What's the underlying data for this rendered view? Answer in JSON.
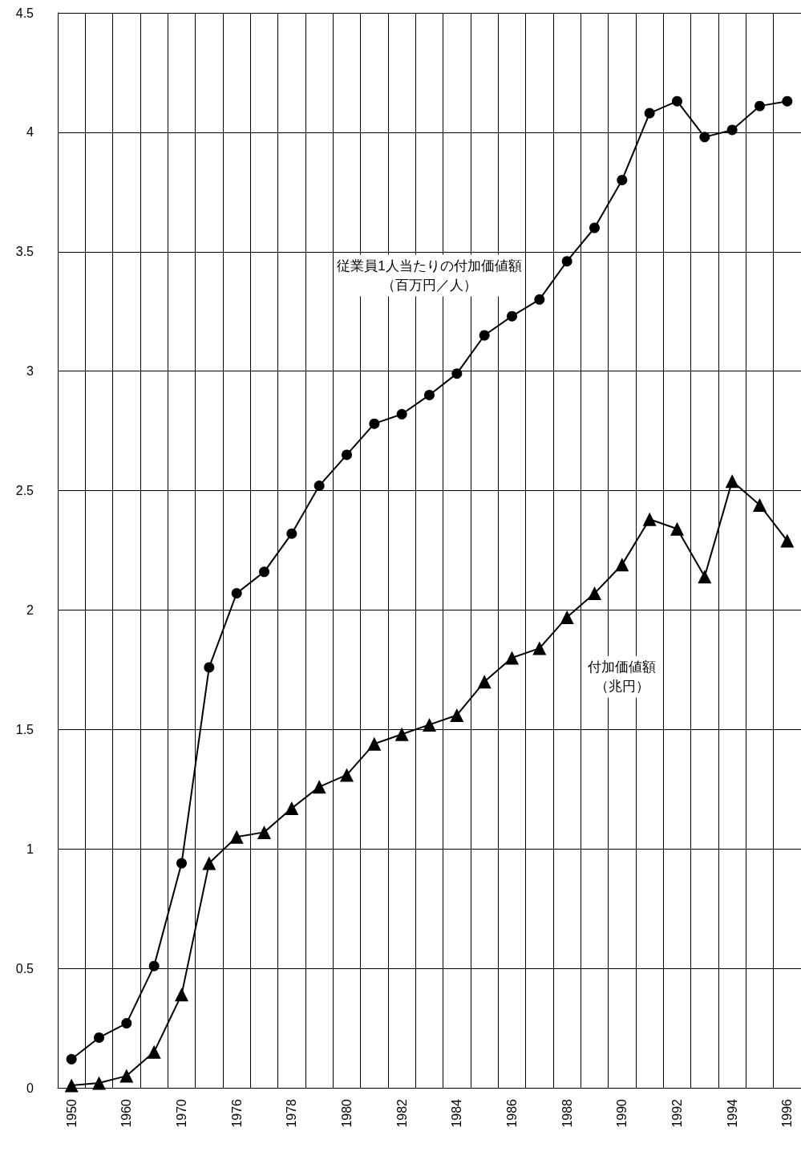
{
  "chart_data": {
    "type": "line",
    "categories": [
      "1950",
      null,
      "1960",
      null,
      "1970",
      null,
      "1976",
      null,
      "1978",
      null,
      "1980",
      null,
      "1982",
      null,
      "1984",
      null,
      "1986",
      null,
      "1988",
      null,
      "1990",
      null,
      "1992",
      null,
      "1994",
      null,
      "1996"
    ],
    "series": [
      {
        "name": "従業員1人当たりの付加価値額（百万円／人）",
        "color": "#000000",
        "marker": "circle",
        "values": [
          0.12,
          0.21,
          0.27,
          0.51,
          0.94,
          1.76,
          2.07,
          2.16,
          2.32,
          2.52,
          2.65,
          2.78,
          2.82,
          2.9,
          2.99,
          3.15,
          3.23,
          3.3,
          3.46,
          3.6,
          3.8,
          4.08,
          4.13,
          3.98,
          4.01,
          4.11,
          4.13
        ]
      },
      {
        "name": "付加価値額（兆円）",
        "color": "#000000",
        "marker": "triangle",
        "values": [
          0.01,
          0.02,
          0.05,
          0.15,
          0.39,
          0.94,
          1.05,
          1.07,
          1.17,
          1.26,
          1.31,
          1.44,
          1.48,
          1.52,
          1.56,
          1.7,
          1.8,
          1.84,
          1.97,
          2.07,
          2.19,
          2.38,
          2.34,
          2.14,
          2.54,
          2.44,
          2.29
        ]
      }
    ],
    "ylim": [
      0,
      4.5
    ],
    "yticks": [
      0,
      0.5,
      1,
      1.5,
      2,
      2.5,
      3,
      3.5,
      4,
      4.5
    ],
    "grid": true,
    "legend": false,
    "line_style": "solid"
  }
}
